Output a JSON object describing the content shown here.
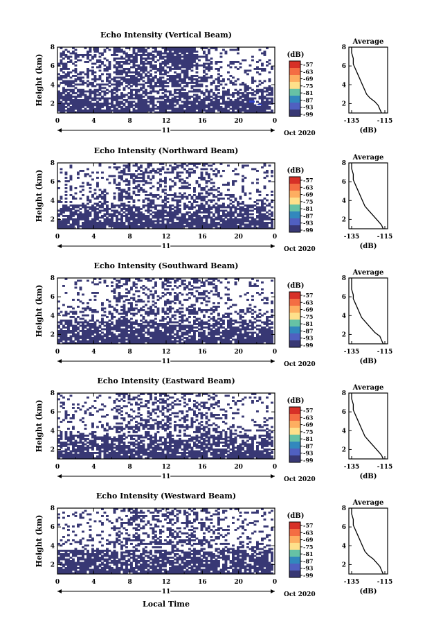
{
  "chart_data": [
    {
      "type": "heatmap",
      "title": "Echo Intensity (Vertical Beam)",
      "ylabel": "Height (km)",
      "xlabel": "",
      "colorbar": {
        "unit": "(dB)",
        "ticks": [
          "-57",
          "-63",
          "-69",
          "-75",
          "-81",
          "-87",
          "-93",
          "-99"
        ]
      },
      "xlim": [
        0,
        24
      ],
      "ylim": [
        1,
        8
      ],
      "xticks": [
        "0",
        "4",
        "8",
        "12",
        "16",
        "20",
        "0"
      ],
      "date_label": "11",
      "date_suffix": "Oct 2020",
      "profile": {
        "title": "Average",
        "xlabel": "(dB)",
        "xticks": [
          "-135",
          "-115"
        ],
        "yticks": [
          "8",
          "6",
          "4",
          "2"
        ],
        "x": [
          -117,
          -118,
          -119,
          -121,
          -124,
          -126,
          -127,
          -128,
          -129,
          -130,
          -131,
          -132,
          -133,
          -134,
          -134,
          -135,
          -135
        ],
        "y": [
          1.0,
          1.4,
          1.8,
          2.2,
          2.6,
          3.0,
          3.4,
          3.8,
          4.2,
          4.6,
          5.0,
          5.4,
          5.8,
          6.2,
          6.8,
          7.4,
          8.0
        ]
      }
    },
    {
      "type": "heatmap",
      "title": "Echo Intensity (Northward Beam)",
      "ylabel": "Height (km)",
      "xlabel": "",
      "colorbar": {
        "unit": "(dB)",
        "ticks": [
          "-57",
          "-63",
          "-69",
          "-75",
          "-81",
          "-87",
          "-93",
          "-99"
        ]
      },
      "xlim": [
        0,
        24
      ],
      "ylim": [
        1,
        8
      ],
      "xticks": [
        "0",
        "4",
        "8",
        "12",
        "16",
        "20",
        "0"
      ],
      "date_label": "11",
      "date_suffix": "Oct 2020",
      "profile": {
        "title": "Average",
        "xlabel": "(dB)",
        "xticks": [
          "-135",
          "-115"
        ],
        "yticks": [
          "8",
          "6",
          "4",
          "2"
        ],
        "x": [
          -116,
          -117,
          -119,
          -121,
          -123,
          -125,
          -127,
          -128,
          -129,
          -130,
          -131,
          -132,
          -133,
          -134,
          -134,
          -135,
          -135
        ],
        "y": [
          1.0,
          1.4,
          1.8,
          2.2,
          2.6,
          3.0,
          3.4,
          3.8,
          4.2,
          4.6,
          5.0,
          5.4,
          5.8,
          6.2,
          6.8,
          7.4,
          8.0
        ]
      }
    },
    {
      "type": "heatmap",
      "title": "Echo Intensity (Southward Beam)",
      "ylabel": "Height (km)",
      "xlabel": "",
      "colorbar": {
        "unit": "(dB)",
        "ticks": [
          "-57",
          "-63",
          "-69",
          "-75",
          "-81",
          "-87",
          "-93",
          "-99"
        ]
      },
      "xlim": [
        0,
        24
      ],
      "ylim": [
        1,
        8
      ],
      "xticks": [
        "0",
        "4",
        "8",
        "12",
        "16",
        "20",
        "0"
      ],
      "date_label": "11",
      "date_suffix": "Oct 2020",
      "profile": {
        "title": "Average",
        "xlabel": "(dB)",
        "xticks": [
          "-135",
          "-115"
        ],
        "yticks": [
          "8",
          "6",
          "4",
          "2"
        ],
        "x": [
          -116,
          -117,
          -118,
          -121,
          -123,
          -125,
          -127,
          -129,
          -130,
          -131,
          -132,
          -133,
          -134,
          -134,
          -135,
          -135,
          -135
        ],
        "y": [
          1.0,
          1.4,
          1.8,
          2.2,
          2.6,
          3.0,
          3.4,
          3.8,
          4.2,
          4.6,
          5.0,
          5.4,
          5.8,
          6.2,
          6.8,
          7.4,
          8.0
        ]
      }
    },
    {
      "type": "heatmap",
      "title": "Echo Intensity (Eastward Beam)",
      "ylabel": "Height (km)",
      "xlabel": "",
      "colorbar": {
        "unit": "(dB)",
        "ticks": [
          "-57",
          "-63",
          "-69",
          "-75",
          "-81",
          "-87",
          "-93",
          "-99"
        ]
      },
      "xlim": [
        0,
        24
      ],
      "ylim": [
        1,
        8
      ],
      "xticks": [
        "0",
        "4",
        "8",
        "12",
        "16",
        "20",
        "0"
      ],
      "date_label": "11",
      "date_suffix": "Oct 2020",
      "profile": {
        "title": "Average",
        "xlabel": "(dB)",
        "xticks": [
          "-135",
          "-115"
        ],
        "yticks": [
          "8",
          "6",
          "4",
          "2"
        ],
        "x": [
          -116,
          -117,
          -119,
          -121,
          -123,
          -125,
          -127,
          -128,
          -129,
          -130,
          -131,
          -132,
          -133,
          -134,
          -134,
          -135,
          -135
        ],
        "y": [
          1.0,
          1.4,
          1.8,
          2.2,
          2.6,
          3.0,
          3.4,
          3.8,
          4.2,
          4.6,
          5.0,
          5.4,
          5.8,
          6.2,
          6.8,
          7.4,
          8.0
        ]
      }
    },
    {
      "type": "heatmap",
      "title": "Echo Intensity (Westward Beam)",
      "ylabel": "Height (km)",
      "xlabel": "Local Time",
      "colorbar": {
        "unit": "(dB)",
        "ticks": [
          "-57",
          "-63",
          "-69",
          "-75",
          "-81",
          "-87",
          "-93",
          "-99"
        ]
      },
      "xlim": [
        0,
        24
      ],
      "ylim": [
        1,
        8
      ],
      "xticks": [
        "0",
        "4",
        "8",
        "12",
        "16",
        "20",
        "0"
      ],
      "date_label": "11",
      "date_suffix": "Oct 2020",
      "profile": {
        "title": "Average",
        "xlabel": "(dB)",
        "xticks": [
          "-135",
          "-115"
        ],
        "yticks": [
          "8",
          "6",
          "4",
          "2"
        ],
        "x": [
          -116,
          -117,
          -118,
          -120,
          -122,
          -125,
          -127,
          -128,
          -129,
          -130,
          -131,
          -132,
          -133,
          -134,
          -134,
          -135,
          -135
        ],
        "y": [
          1.0,
          1.4,
          1.8,
          2.2,
          2.6,
          3.0,
          3.4,
          3.8,
          4.2,
          4.6,
          5.0,
          5.4,
          5.8,
          6.2,
          6.8,
          7.4,
          8.0
        ]
      }
    }
  ],
  "colors": {
    "echo": "#383874",
    "accent": "#3344cc",
    "scale": [
      "#d73027",
      "#f46d43",
      "#fdae61",
      "#fee08b",
      "#66c2a5",
      "#3288bd",
      "#5060c0",
      "#383874"
    ]
  }
}
